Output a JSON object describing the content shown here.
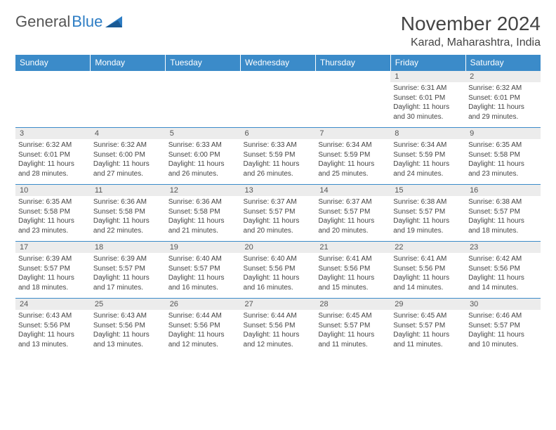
{
  "logo": {
    "text1": "General",
    "text2": "Blue"
  },
  "header": {
    "month": "November 2024",
    "location": "Karad, Maharashtra, India"
  },
  "colors": {
    "header_bg": "#3b8bc9",
    "header_text": "#ffffff",
    "daynum_bg": "#ececec",
    "logo_blue": "#2d7dc4",
    "border": "#3b8bc9"
  },
  "weekdays": [
    "Sunday",
    "Monday",
    "Tuesday",
    "Wednesday",
    "Thursday",
    "Friday",
    "Saturday"
  ],
  "weeks": [
    [
      {
        "num": "",
        "lines": [
          "",
          "",
          "",
          ""
        ]
      },
      {
        "num": "",
        "lines": [
          "",
          "",
          "",
          ""
        ]
      },
      {
        "num": "",
        "lines": [
          "",
          "",
          "",
          ""
        ]
      },
      {
        "num": "",
        "lines": [
          "",
          "",
          "",
          ""
        ]
      },
      {
        "num": "",
        "lines": [
          "",
          "",
          "",
          ""
        ]
      },
      {
        "num": "1",
        "lines": [
          "Sunrise: 6:31 AM",
          "Sunset: 6:01 PM",
          "Daylight: 11 hours",
          "and 30 minutes."
        ]
      },
      {
        "num": "2",
        "lines": [
          "Sunrise: 6:32 AM",
          "Sunset: 6:01 PM",
          "Daylight: 11 hours",
          "and 29 minutes."
        ]
      }
    ],
    [
      {
        "num": "3",
        "lines": [
          "Sunrise: 6:32 AM",
          "Sunset: 6:01 PM",
          "Daylight: 11 hours",
          "and 28 minutes."
        ]
      },
      {
        "num": "4",
        "lines": [
          "Sunrise: 6:32 AM",
          "Sunset: 6:00 PM",
          "Daylight: 11 hours",
          "and 27 minutes."
        ]
      },
      {
        "num": "5",
        "lines": [
          "Sunrise: 6:33 AM",
          "Sunset: 6:00 PM",
          "Daylight: 11 hours",
          "and 26 minutes."
        ]
      },
      {
        "num": "6",
        "lines": [
          "Sunrise: 6:33 AM",
          "Sunset: 5:59 PM",
          "Daylight: 11 hours",
          "and 26 minutes."
        ]
      },
      {
        "num": "7",
        "lines": [
          "Sunrise: 6:34 AM",
          "Sunset: 5:59 PM",
          "Daylight: 11 hours",
          "and 25 minutes."
        ]
      },
      {
        "num": "8",
        "lines": [
          "Sunrise: 6:34 AM",
          "Sunset: 5:59 PM",
          "Daylight: 11 hours",
          "and 24 minutes."
        ]
      },
      {
        "num": "9",
        "lines": [
          "Sunrise: 6:35 AM",
          "Sunset: 5:58 PM",
          "Daylight: 11 hours",
          "and 23 minutes."
        ]
      }
    ],
    [
      {
        "num": "10",
        "lines": [
          "Sunrise: 6:35 AM",
          "Sunset: 5:58 PM",
          "Daylight: 11 hours",
          "and 23 minutes."
        ]
      },
      {
        "num": "11",
        "lines": [
          "Sunrise: 6:36 AM",
          "Sunset: 5:58 PM",
          "Daylight: 11 hours",
          "and 22 minutes."
        ]
      },
      {
        "num": "12",
        "lines": [
          "Sunrise: 6:36 AM",
          "Sunset: 5:58 PM",
          "Daylight: 11 hours",
          "and 21 minutes."
        ]
      },
      {
        "num": "13",
        "lines": [
          "Sunrise: 6:37 AM",
          "Sunset: 5:57 PM",
          "Daylight: 11 hours",
          "and 20 minutes."
        ]
      },
      {
        "num": "14",
        "lines": [
          "Sunrise: 6:37 AM",
          "Sunset: 5:57 PM",
          "Daylight: 11 hours",
          "and 20 minutes."
        ]
      },
      {
        "num": "15",
        "lines": [
          "Sunrise: 6:38 AM",
          "Sunset: 5:57 PM",
          "Daylight: 11 hours",
          "and 19 minutes."
        ]
      },
      {
        "num": "16",
        "lines": [
          "Sunrise: 6:38 AM",
          "Sunset: 5:57 PM",
          "Daylight: 11 hours",
          "and 18 minutes."
        ]
      }
    ],
    [
      {
        "num": "17",
        "lines": [
          "Sunrise: 6:39 AM",
          "Sunset: 5:57 PM",
          "Daylight: 11 hours",
          "and 18 minutes."
        ]
      },
      {
        "num": "18",
        "lines": [
          "Sunrise: 6:39 AM",
          "Sunset: 5:57 PM",
          "Daylight: 11 hours",
          "and 17 minutes."
        ]
      },
      {
        "num": "19",
        "lines": [
          "Sunrise: 6:40 AM",
          "Sunset: 5:57 PM",
          "Daylight: 11 hours",
          "and 16 minutes."
        ]
      },
      {
        "num": "20",
        "lines": [
          "Sunrise: 6:40 AM",
          "Sunset: 5:56 PM",
          "Daylight: 11 hours",
          "and 16 minutes."
        ]
      },
      {
        "num": "21",
        "lines": [
          "Sunrise: 6:41 AM",
          "Sunset: 5:56 PM",
          "Daylight: 11 hours",
          "and 15 minutes."
        ]
      },
      {
        "num": "22",
        "lines": [
          "Sunrise: 6:41 AM",
          "Sunset: 5:56 PM",
          "Daylight: 11 hours",
          "and 14 minutes."
        ]
      },
      {
        "num": "23",
        "lines": [
          "Sunrise: 6:42 AM",
          "Sunset: 5:56 PM",
          "Daylight: 11 hours",
          "and 14 minutes."
        ]
      }
    ],
    [
      {
        "num": "24",
        "lines": [
          "Sunrise: 6:43 AM",
          "Sunset: 5:56 PM",
          "Daylight: 11 hours",
          "and 13 minutes."
        ]
      },
      {
        "num": "25",
        "lines": [
          "Sunrise: 6:43 AM",
          "Sunset: 5:56 PM",
          "Daylight: 11 hours",
          "and 13 minutes."
        ]
      },
      {
        "num": "26",
        "lines": [
          "Sunrise: 6:44 AM",
          "Sunset: 5:56 PM",
          "Daylight: 11 hours",
          "and 12 minutes."
        ]
      },
      {
        "num": "27",
        "lines": [
          "Sunrise: 6:44 AM",
          "Sunset: 5:56 PM",
          "Daylight: 11 hours",
          "and 12 minutes."
        ]
      },
      {
        "num": "28",
        "lines": [
          "Sunrise: 6:45 AM",
          "Sunset: 5:57 PM",
          "Daylight: 11 hours",
          "and 11 minutes."
        ]
      },
      {
        "num": "29",
        "lines": [
          "Sunrise: 6:45 AM",
          "Sunset: 5:57 PM",
          "Daylight: 11 hours",
          "and 11 minutes."
        ]
      },
      {
        "num": "30",
        "lines": [
          "Sunrise: 6:46 AM",
          "Sunset: 5:57 PM",
          "Daylight: 11 hours",
          "and 10 minutes."
        ]
      }
    ]
  ]
}
